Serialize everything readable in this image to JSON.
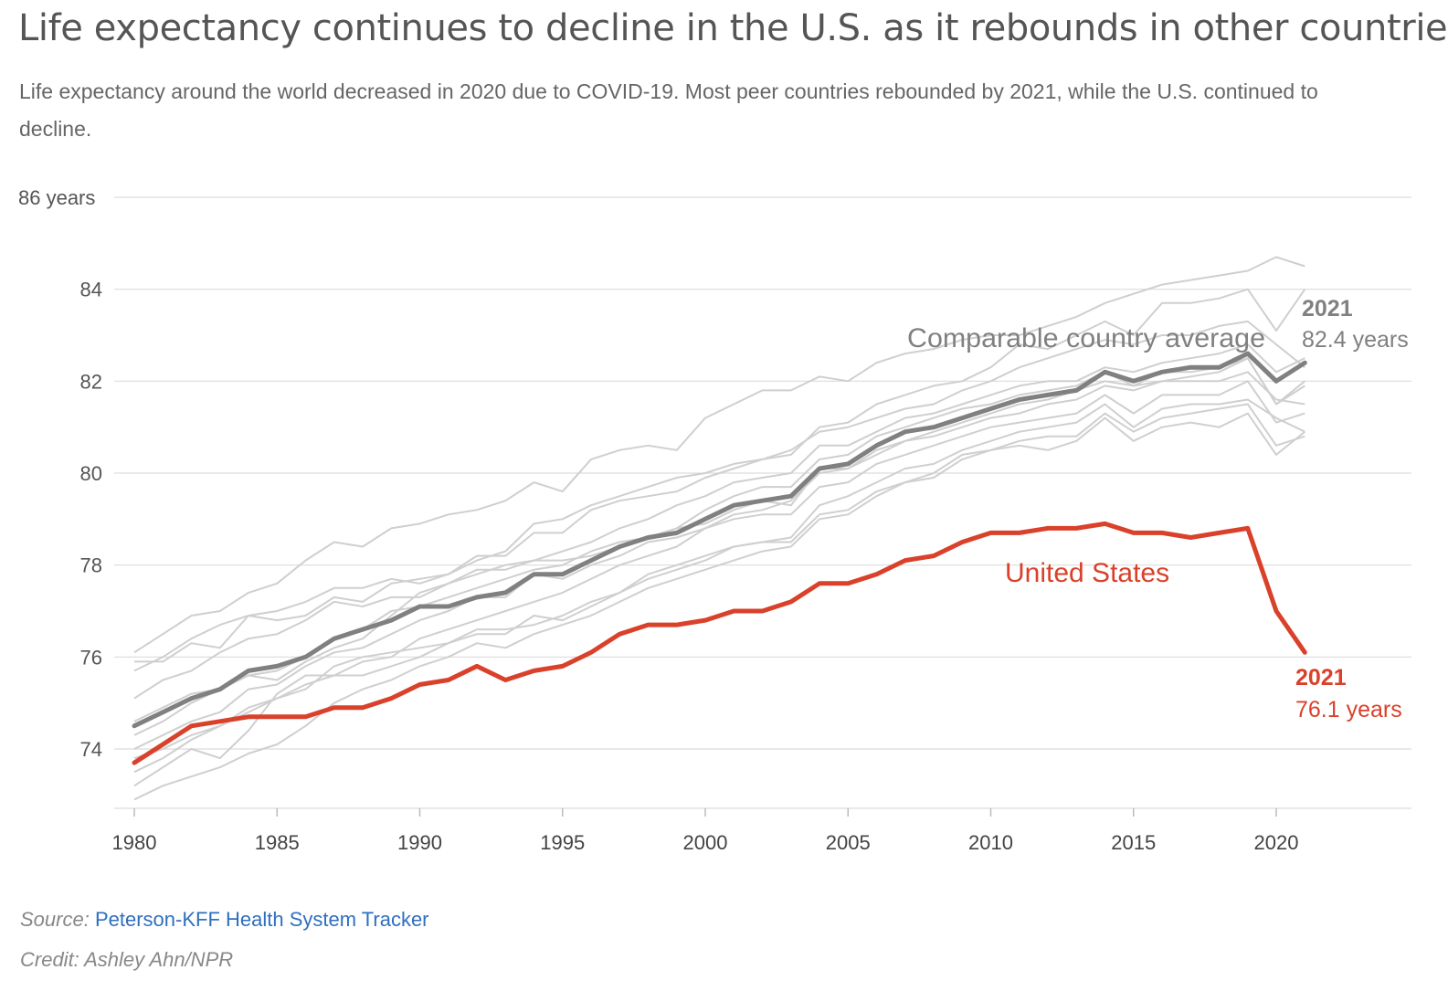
{
  "title": "Life expectancy continues to decline in the U.S. as it rebounds in other countries",
  "subtitle": "Life expectancy around the world decreased in 2020 due to COVID-19. Most peer countries rebounded by 2021, while the U.S. continued to decline.",
  "source_label": "Source:",
  "source_link": "Peterson-KFF Health System Tracker",
  "credit": "Credit: Ashley Ahn/NPR",
  "chart_data": {
    "type": "line",
    "ylim": [
      73,
      86
    ],
    "xlim": [
      1980,
      2024
    ],
    "y_ticks": [
      {
        "value": 86,
        "label": "86 years"
      },
      {
        "value": 84,
        "label": "84"
      },
      {
        "value": 82,
        "label": "82"
      },
      {
        "value": 80,
        "label": "80"
      },
      {
        "value": 78,
        "label": "78"
      },
      {
        "value": 76,
        "label": "76"
      },
      {
        "value": 74,
        "label": "74"
      }
    ],
    "x_ticks": [
      1980,
      1985,
      1990,
      1995,
      2000,
      2005,
      2010,
      2015,
      2020
    ],
    "x": [
      1980,
      1981,
      1982,
      1983,
      1984,
      1985,
      1986,
      1987,
      1988,
      1989,
      1990,
      1991,
      1992,
      1993,
      1994,
      1995,
      1996,
      1997,
      1998,
      1999,
      2000,
      2001,
      2002,
      2003,
      2004,
      2005,
      2006,
      2007,
      2008,
      2009,
      2010,
      2011,
      2012,
      2013,
      2014,
      2015,
      2016,
      2017,
      2018,
      2019,
      2020,
      2021
    ],
    "series": [
      {
        "name": "United States",
        "color": "#d9412b",
        "highlight": true,
        "values": [
          73.7,
          74.1,
          74.5,
          74.6,
          74.7,
          74.7,
          74.7,
          74.9,
          74.9,
          75.1,
          75.4,
          75.5,
          75.8,
          75.5,
          75.7,
          75.8,
          76.1,
          76.5,
          76.7,
          76.7,
          76.8,
          77.0,
          77.0,
          77.2,
          77.6,
          77.6,
          77.8,
          78.1,
          78.2,
          78.5,
          78.7,
          78.7,
          78.8,
          78.8,
          78.9,
          78.7,
          78.7,
          78.6,
          78.7,
          78.8,
          77.0,
          76.1
        ]
      },
      {
        "name": "Comparable country average",
        "color": "#808080",
        "highlight": true,
        "values": [
          74.5,
          74.8,
          75.1,
          75.3,
          75.7,
          75.8,
          76.0,
          76.4,
          76.6,
          76.8,
          77.1,
          77.1,
          77.3,
          77.4,
          77.8,
          77.8,
          78.1,
          78.4,
          78.6,
          78.7,
          79.0,
          79.3,
          79.4,
          79.5,
          80.1,
          80.2,
          80.6,
          80.9,
          81.0,
          81.2,
          81.4,
          81.6,
          81.7,
          81.8,
          82.2,
          82.0,
          82.2,
          82.3,
          82.3,
          82.6,
          82.0,
          82.4
        ]
      },
      {
        "color": "#cfcfcf",
        "values": [
          76.1,
          76.5,
          76.9,
          77.0,
          77.4,
          77.6,
          78.1,
          78.5,
          78.4,
          78.8,
          78.9,
          79.1,
          79.2,
          79.4,
          79.8,
          79.6,
          80.3,
          80.5,
          80.6,
          80.5,
          81.2,
          81.5,
          81.8,
          81.8,
          82.1,
          82.0,
          82.4,
          82.6,
          82.7,
          82.9,
          83.0,
          83.0,
          83.2,
          83.4,
          83.7,
          83.9,
          84.1,
          84.2,
          84.3,
          84.4,
          84.7,
          84.5
        ]
      },
      {
        "color": "#cfcfcf",
        "values": [
          75.9,
          75.9,
          76.3,
          76.2,
          76.9,
          76.8,
          76.9,
          77.3,
          77.2,
          77.6,
          77.7,
          77.8,
          78.2,
          78.2,
          78.7,
          78.7,
          79.2,
          79.4,
          79.5,
          79.6,
          79.9,
          80.1,
          80.3,
          80.4,
          81.0,
          81.1,
          81.5,
          81.7,
          81.9,
          82.0,
          82.3,
          82.8,
          82.7,
          83.0,
          83.3,
          83.0,
          83.7,
          83.7,
          83.8,
          84.0,
          83.1,
          84.0
        ]
      },
      {
        "color": "#cfcfcf",
        "values": [
          75.7,
          76.0,
          76.4,
          76.7,
          76.9,
          77.0,
          77.2,
          77.5,
          77.5,
          77.7,
          77.6,
          77.8,
          78.1,
          78.3,
          78.9,
          79.0,
          79.3,
          79.5,
          79.7,
          79.9,
          80.0,
          80.2,
          80.3,
          80.5,
          80.9,
          81.0,
          81.2,
          81.4,
          81.5,
          81.8,
          82.0,
          82.3,
          82.5,
          82.7,
          82.9,
          82.8,
          83.0,
          83.0,
          83.2,
          83.3,
          82.8,
          82.3
        ]
      },
      {
        "color": "#cfcfcf",
        "values": [
          75.1,
          75.5,
          75.7,
          76.1,
          76.4,
          76.5,
          76.8,
          77.2,
          77.1,
          77.3,
          77.3,
          77.6,
          77.8,
          78.0,
          78.1,
          78.3,
          78.5,
          78.8,
          79.0,
          79.3,
          79.5,
          79.8,
          79.9,
          80.0,
          80.6,
          80.6,
          80.9,
          81.2,
          81.3,
          81.5,
          81.7,
          81.9,
          82.0,
          82.0,
          82.3,
          82.2,
          82.4,
          82.5,
          82.6,
          82.8,
          82.2,
          82.5
        ]
      },
      {
        "color": "#cfcfcf",
        "values": [
          74.3,
          74.6,
          75.0,
          75.3,
          75.6,
          75.7,
          76.0,
          76.4,
          76.6,
          77.0,
          77.1,
          77.3,
          77.5,
          77.7,
          77.9,
          78.0,
          78.3,
          78.5,
          78.6,
          78.8,
          79.2,
          79.5,
          79.7,
          79.7,
          80.3,
          80.4,
          80.8,
          81.0,
          81.2,
          81.4,
          81.5,
          81.7,
          81.8,
          81.9,
          82.2,
          81.9,
          82.2,
          82.2,
          82.3,
          82.5,
          81.5,
          82.0
        ]
      },
      {
        "color": "#cfcfcf",
        "values": [
          74.0,
          74.3,
          74.6,
          74.8,
          75.3,
          75.4,
          75.8,
          76.1,
          76.2,
          76.5,
          76.8,
          77.0,
          77.3,
          77.3,
          77.8,
          77.7,
          78.0,
          78.2,
          78.5,
          78.6,
          78.8,
          79.1,
          79.2,
          79.4,
          80.0,
          80.1,
          80.4,
          80.7,
          80.9,
          81.1,
          81.3,
          81.5,
          81.6,
          81.8,
          82.0,
          81.9,
          82.0,
          82.1,
          82.2,
          82.5,
          81.5,
          81.9
        ]
      },
      {
        "color": "#cfcfcf",
        "values": [
          74.6,
          74.9,
          75.2,
          75.3,
          75.6,
          75.5,
          75.9,
          76.2,
          76.4,
          76.9,
          77.4,
          77.6,
          77.9,
          77.9,
          78.1,
          78.1,
          78.2,
          78.4,
          78.6,
          78.8,
          78.9,
          79.2,
          79.4,
          79.3,
          80.1,
          80.1,
          80.5,
          80.7,
          80.8,
          81.0,
          81.2,
          81.3,
          81.5,
          81.6,
          81.9,
          81.8,
          82.0,
          82.0,
          82.0,
          82.2,
          81.6,
          81.5
        ]
      },
      {
        "color": "#cfcfcf",
        "values": [
          73.5,
          73.8,
          74.2,
          74.5,
          74.8,
          75.1,
          75.4,
          75.6,
          75.9,
          76.0,
          76.4,
          76.6,
          76.8,
          77.0,
          77.2,
          77.4,
          77.7,
          78.0,
          78.2,
          78.4,
          78.8,
          79.0,
          79.1,
          79.1,
          79.7,
          79.8,
          80.2,
          80.4,
          80.6,
          80.8,
          81.0,
          81.1,
          81.2,
          81.3,
          81.7,
          81.3,
          81.7,
          81.7,
          81.7,
          82.0,
          81.1,
          81.3
        ]
      },
      {
        "color": "#cfcfcf",
        "values": [
          73.8,
          74.0,
          74.3,
          74.5,
          74.9,
          75.1,
          75.3,
          75.8,
          76.0,
          76.1,
          76.2,
          76.3,
          76.5,
          76.5,
          76.9,
          76.8,
          77.1,
          77.4,
          77.7,
          77.9,
          78.1,
          78.4,
          78.5,
          78.6,
          79.3,
          79.5,
          79.8,
          80.1,
          80.2,
          80.5,
          80.7,
          80.9,
          81.0,
          81.1,
          81.5,
          81.0,
          81.4,
          81.5,
          81.5,
          81.6,
          81.2,
          80.9
        ]
      },
      {
        "color": "#cfcfcf",
        "values": [
          73.2,
          73.6,
          74.0,
          73.8,
          74.4,
          75.2,
          75.6,
          75.6,
          75.6,
          75.8,
          76.0,
          76.3,
          76.6,
          76.6,
          76.7,
          76.9,
          77.2,
          77.4,
          77.8,
          78.0,
          78.2,
          78.4,
          78.5,
          78.5,
          79.1,
          79.2,
          79.6,
          79.8,
          80.0,
          80.4,
          80.5,
          80.7,
          80.8,
          80.8,
          81.3,
          80.9,
          81.2,
          81.3,
          81.4,
          81.5,
          80.6,
          80.8
        ]
      },
      {
        "color": "#cfcfcf",
        "values": [
          72.9,
          73.2,
          73.4,
          73.6,
          73.9,
          74.1,
          74.5,
          75.0,
          75.3,
          75.5,
          75.8,
          76.0,
          76.3,
          76.2,
          76.5,
          76.7,
          76.9,
          77.2,
          77.5,
          77.7,
          77.9,
          78.1,
          78.3,
          78.4,
          79.0,
          79.1,
          79.5,
          79.8,
          79.9,
          80.3,
          80.5,
          80.6,
          80.5,
          80.7,
          81.2,
          80.7,
          81.0,
          81.1,
          81.0,
          81.3,
          80.4,
          80.9
        ]
      }
    ],
    "annotations": {
      "avg_label": "Comparable country average",
      "us_label": "United States",
      "avg_year": "2021",
      "avg_value": "82.4 years",
      "us_year": "2021",
      "us_value": "76.1 years"
    }
  }
}
